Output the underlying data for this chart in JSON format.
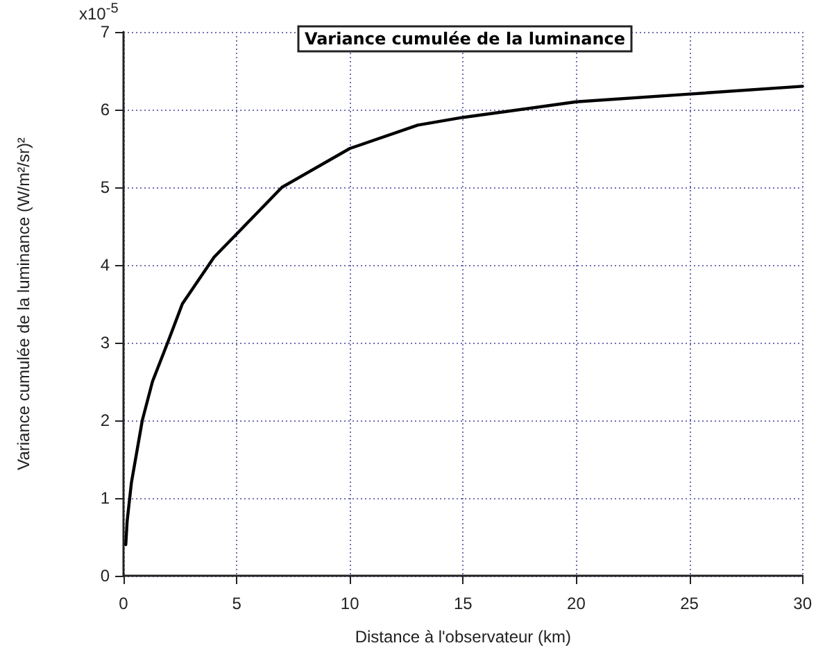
{
  "chart_data": {
    "type": "line",
    "title": "Variance cumulée de la luminance",
    "xlabel": "Distance à l'observateur (km)",
    "ylabel": "Variance cumulée de la luminance (W/m²/sr)²",
    "x": [
      0.1,
      0.16,
      0.35,
      0.83,
      1.28,
      1.95,
      2.6,
      4,
      5,
      7,
      10,
      13,
      15,
      20,
      25,
      30
    ],
    "series": [
      {
        "color": "#000000",
        "values": [
          0.4,
          0.7,
          1.2,
          2.0,
          2.5,
          3.0,
          3.5,
          4.1,
          4.4,
          5.0,
          5.5,
          5.8,
          5.9,
          6.1,
          6.2,
          6.3
        ]
      }
    ],
    "xlim": [
      0,
      30
    ],
    "xticks": [
      0,
      5,
      10,
      15,
      20,
      25,
      30
    ],
    "ylim": [
      0,
      7
    ],
    "yticks": [
      0,
      1,
      2,
      3,
      4,
      5,
      6,
      7
    ],
    "annotations": [
      "x10$^{-5}$"
    ],
    "grid": true,
    "marker": "none",
    "line_style": "solid"
  }
}
